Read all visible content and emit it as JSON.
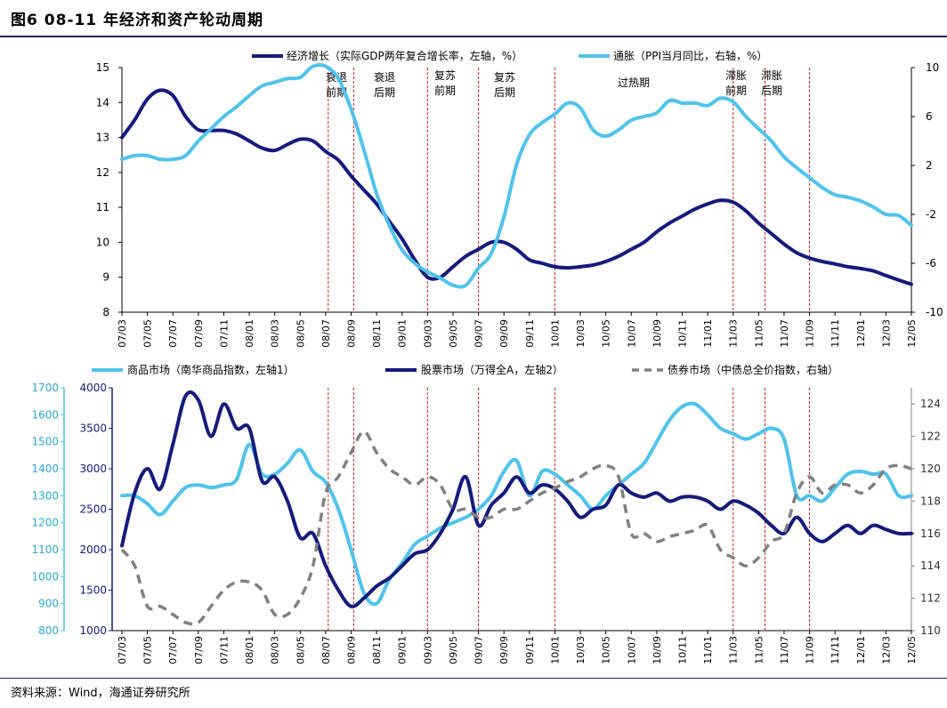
{
  "figure": {
    "title": "图6   08-11 年经济和资产轮动周期",
    "source": "资料来源：Wind，海通证券研究所"
  },
  "chart_data": [
    {
      "type": "line",
      "x_ticks": [
        "07/03",
        "07/05",
        "07/07",
        "07/09",
        "07/11",
        "08/01",
        "08/03",
        "08/05",
        "08/07",
        "08/09",
        "08/11",
        "09/01",
        "09/03",
        "09/05",
        "09/07",
        "09/09",
        "09/11",
        "10/01",
        "10/03",
        "10/05",
        "10/07",
        "10/09",
        "10/11",
        "11/01",
        "11/03",
        "11/05",
        "11/07",
        "11/09",
        "11/11",
        "12/01",
        "12/03",
        "12/05"
      ],
      "y_left": {
        "min": 8,
        "max": 15,
        "ticks": [
          "8",
          "9",
          "10",
          "11",
          "12",
          "13",
          "14",
          "15"
        ]
      },
      "y_right": {
        "min": -10,
        "max": 10,
        "ticks": [
          "-10",
          "-6",
          "-2",
          "2",
          "6",
          "10"
        ]
      },
      "series": [
        {
          "name": "经济增长（实际GDP两年复合增长率，左轴，%）",
          "axis": "left",
          "color": "#141b7c",
          "x": [
            0,
            1,
            2,
            3,
            4,
            5,
            6,
            7,
            8,
            9,
            10,
            11,
            12,
            13,
            14,
            15,
            16,
            17,
            18,
            19,
            20,
            21,
            22,
            23,
            24,
            25,
            26,
            27,
            28,
            29,
            30,
            31,
            32,
            33,
            34,
            35,
            36,
            37,
            38,
            39,
            40,
            41,
            42,
            43,
            44,
            45,
            46,
            47,
            48,
            49,
            50,
            51,
            52,
            53,
            54,
            55,
            56,
            57,
            58,
            59,
            60,
            61,
            62
          ],
          "values": [
            13.0,
            13.5,
            14.1,
            14.35,
            14.2,
            13.6,
            13.22,
            13.2,
            13.2,
            13.1,
            12.9,
            12.7,
            12.63,
            12.8,
            12.95,
            12.9,
            12.6,
            12.35,
            11.9,
            11.5,
            11.1,
            10.6,
            10.1,
            9.5,
            9.0,
            9.0,
            9.3,
            9.6,
            9.8,
            10.0,
            10.0,
            9.8,
            9.5,
            9.4,
            9.3,
            9.27,
            9.3,
            9.35,
            9.45,
            9.6,
            9.8,
            10.0,
            10.3,
            10.55,
            10.75,
            10.95,
            11.1,
            11.2,
            11.15,
            10.9,
            10.55,
            10.25,
            9.95,
            9.7,
            9.55,
            9.45,
            9.38,
            9.3,
            9.25,
            9.18,
            9.05,
            8.92,
            8.8
          ]
        },
        {
          "name": "通胀（PPI当月同比，右轴，%）",
          "axis": "right",
          "color": "#4fc3ec",
          "x": [
            0,
            1,
            2,
            3,
            4,
            5,
            6,
            7,
            8,
            9,
            10,
            11,
            12,
            13,
            14,
            15,
            16,
            17,
            18,
            19,
            20,
            21,
            22,
            23,
            24,
            25,
            26,
            27,
            28,
            29,
            30,
            31,
            32,
            33,
            34,
            35,
            36,
            37,
            38,
            39,
            40,
            41,
            42,
            43,
            44,
            45,
            46,
            47,
            48,
            49,
            50,
            51,
            52,
            53,
            54,
            55,
            56,
            57,
            58,
            59,
            60,
            61,
            62
          ],
          "values": [
            2.5,
            2.8,
            2.8,
            2.5,
            2.5,
            2.8,
            4.0,
            5.0,
            6.0,
            6.8,
            7.7,
            8.5,
            8.8,
            9.1,
            9.2,
            10.1,
            10.1,
            9.1,
            6.6,
            3.3,
            -0.3,
            -2.9,
            -4.9,
            -6.0,
            -6.7,
            -7.2,
            -7.8,
            -7.8,
            -6.4,
            -5.2,
            -2.2,
            2.1,
            4.5,
            5.5,
            6.2,
            7.1,
            6.7,
            4.9,
            4.4,
            4.9,
            5.7,
            6.0,
            6.3,
            7.3,
            7.1,
            7.1,
            6.9,
            7.5,
            7.2,
            6.0,
            5.0,
            4.0,
            2.7,
            1.8,
            1.0,
            0.2,
            -0.4,
            -0.6,
            -0.9,
            -1.4,
            -2.0,
            -2.1,
            -2.9
          ]
        }
      ],
      "phases": [
        {
          "label": "衰退前期",
          "at": 16.2
        },
        {
          "label": "衰退后期",
          "at": 18.2
        },
        {
          "label": "复苏前期",
          "at": 24.0
        },
        {
          "label": "复苏后期",
          "at": 28.0
        },
        {
          "label": "过热期",
          "at": 34.0
        },
        {
          "label": "滞胀前期",
          "at": 48.0
        },
        {
          "label": "滞胀后期",
          "at": 50.5
        },
        {
          "label": "",
          "at": 54.0
        }
      ]
    },
    {
      "type": "line",
      "x_ticks": [
        "07/03",
        "07/05",
        "07/07",
        "07/09",
        "07/11",
        "08/01",
        "08/03",
        "08/05",
        "08/07",
        "08/09",
        "08/11",
        "09/01",
        "09/03",
        "09/05",
        "09/07",
        "09/09",
        "09/11",
        "10/01",
        "10/03",
        "10/05",
        "10/07",
        "10/09",
        "10/11",
        "11/01",
        "11/03",
        "11/05",
        "11/07",
        "11/09",
        "11/11",
        "12/01",
        "12/03",
        "12/05"
      ],
      "y_axis1": {
        "min": 800,
        "max": 1700,
        "ticks": [
          "800",
          "900",
          "1000",
          "1100",
          "1200",
          "1300",
          "1400",
          "1500",
          "1600",
          "1700"
        ]
      },
      "y_axis2": {
        "min": 1000,
        "max": 4000,
        "ticks": [
          "1000",
          "1500",
          "2000",
          "2500",
          "3000",
          "3500",
          "4000"
        ]
      },
      "y_right": {
        "min": 110,
        "max": 125,
        "ticks": [
          "110",
          "112",
          "114",
          "116",
          "118",
          "120",
          "122",
          "124"
        ]
      },
      "series": [
        {
          "name": "商品市场（南华商品指数，左轴1）",
          "axis": "axis1",
          "color": "#4fc3ec",
          "dash": false,
          "x": [
            0,
            1,
            2,
            3,
            4,
            5,
            6,
            7,
            8,
            9,
            10,
            11,
            12,
            13,
            14,
            15,
            16,
            17,
            18,
            19,
            20,
            21,
            22,
            23,
            24,
            25,
            26,
            27,
            28,
            29,
            30,
            31,
            32,
            33,
            34,
            35,
            36,
            37,
            38,
            39,
            40,
            41,
            42,
            43,
            44,
            45,
            46,
            47,
            48,
            49,
            50,
            51,
            52,
            53,
            54,
            55,
            56,
            57,
            58,
            59,
            60,
            61,
            62
          ],
          "values": [
            1300,
            1300,
            1270,
            1230,
            1280,
            1330,
            1340,
            1330,
            1340,
            1360,
            1490,
            1380,
            1380,
            1420,
            1470,
            1390,
            1350,
            1250,
            1100,
            940,
            900,
            990,
            1050,
            1120,
            1150,
            1180,
            1200,
            1220,
            1250,
            1300,
            1390,
            1430,
            1300,
            1390,
            1380,
            1340,
            1300,
            1250,
            1300,
            1340,
            1380,
            1420,
            1500,
            1580,
            1630,
            1640,
            1600,
            1550,
            1530,
            1510,
            1530,
            1550,
            1510,
            1300,
            1300,
            1280,
            1330,
            1380,
            1390,
            1380,
            1380,
            1300,
            1300
          ]
        },
        {
          "name": "股票市场（万得全A，左轴2）",
          "axis": "axis2",
          "color": "#141b7c",
          "dash": false,
          "x": [
            0,
            1,
            2,
            3,
            4,
            5,
            6,
            7,
            8,
            9,
            10,
            11,
            12,
            13,
            14,
            15,
            16,
            17,
            18,
            19,
            20,
            21,
            22,
            23,
            24,
            25,
            26,
            27,
            28,
            29,
            30,
            31,
            32,
            33,
            34,
            35,
            36,
            37,
            38,
            39,
            40,
            41,
            42,
            43,
            44,
            45,
            46,
            47,
            48,
            49,
            50,
            51,
            52,
            53,
            54,
            55,
            56,
            57,
            58,
            59,
            60,
            61,
            62
          ],
          "values": [
            2050,
            2700,
            3000,
            2750,
            3300,
            3900,
            3850,
            3400,
            3800,
            3500,
            3500,
            2850,
            2900,
            2600,
            2150,
            2200,
            1800,
            1500,
            1300,
            1400,
            1550,
            1650,
            1800,
            1950,
            2000,
            2200,
            2500,
            2900,
            2300,
            2550,
            2700,
            2900,
            2700,
            2800,
            2750,
            2600,
            2400,
            2500,
            2550,
            2800,
            2700,
            2650,
            2700,
            2600,
            2650,
            2650,
            2600,
            2500,
            2600,
            2550,
            2450,
            2300,
            2200,
            2400,
            2200,
            2100,
            2200,
            2300,
            2200,
            2300,
            2250,
            2200,
            2200
          ]
        },
        {
          "name": "债券市场（中债总全价指数，右轴）",
          "axis": "right",
          "color": "#808080",
          "dash": true,
          "x": [
            0,
            1,
            2,
            3,
            4,
            5,
            6,
            7,
            8,
            9,
            10,
            11,
            12,
            13,
            14,
            15,
            16,
            17,
            18,
            19,
            20,
            21,
            22,
            23,
            24,
            25,
            26,
            27,
            28,
            29,
            30,
            31,
            32,
            33,
            34,
            35,
            36,
            37,
            38,
            39,
            40,
            41,
            42,
            43,
            44,
            45,
            46,
            47,
            48,
            49,
            50,
            51,
            52,
            53,
            54,
            55,
            56,
            57,
            58,
            59,
            60,
            61,
            62
          ],
          "values": [
            115.0,
            114.0,
            111.5,
            111.5,
            111.0,
            110.5,
            110.5,
            111.5,
            112.5,
            113.0,
            113.0,
            112.5,
            111.0,
            111.0,
            112.0,
            114.0,
            118.5,
            119.5,
            121.0,
            122.3,
            121.0,
            120.0,
            119.5,
            119.0,
            119.5,
            119.0,
            117.5,
            117.5,
            117.0,
            117.0,
            117.5,
            117.5,
            118.0,
            118.5,
            118.8,
            119.2,
            119.5,
            120.0,
            120.2,
            119.5,
            116.0,
            116.0,
            115.5,
            115.8,
            116.0,
            116.2,
            116.5,
            115.0,
            114.5,
            114.0,
            114.5,
            115.5,
            116.0,
            118.5,
            119.5,
            118.5,
            119.0,
            119.0,
            118.5,
            119.0,
            120.0,
            120.2,
            120.0
          ]
        }
      ],
      "phases_at": [
        16.2,
        18.2,
        24.0,
        28.0,
        34.0,
        48.0,
        50.5,
        54.0
      ]
    }
  ]
}
